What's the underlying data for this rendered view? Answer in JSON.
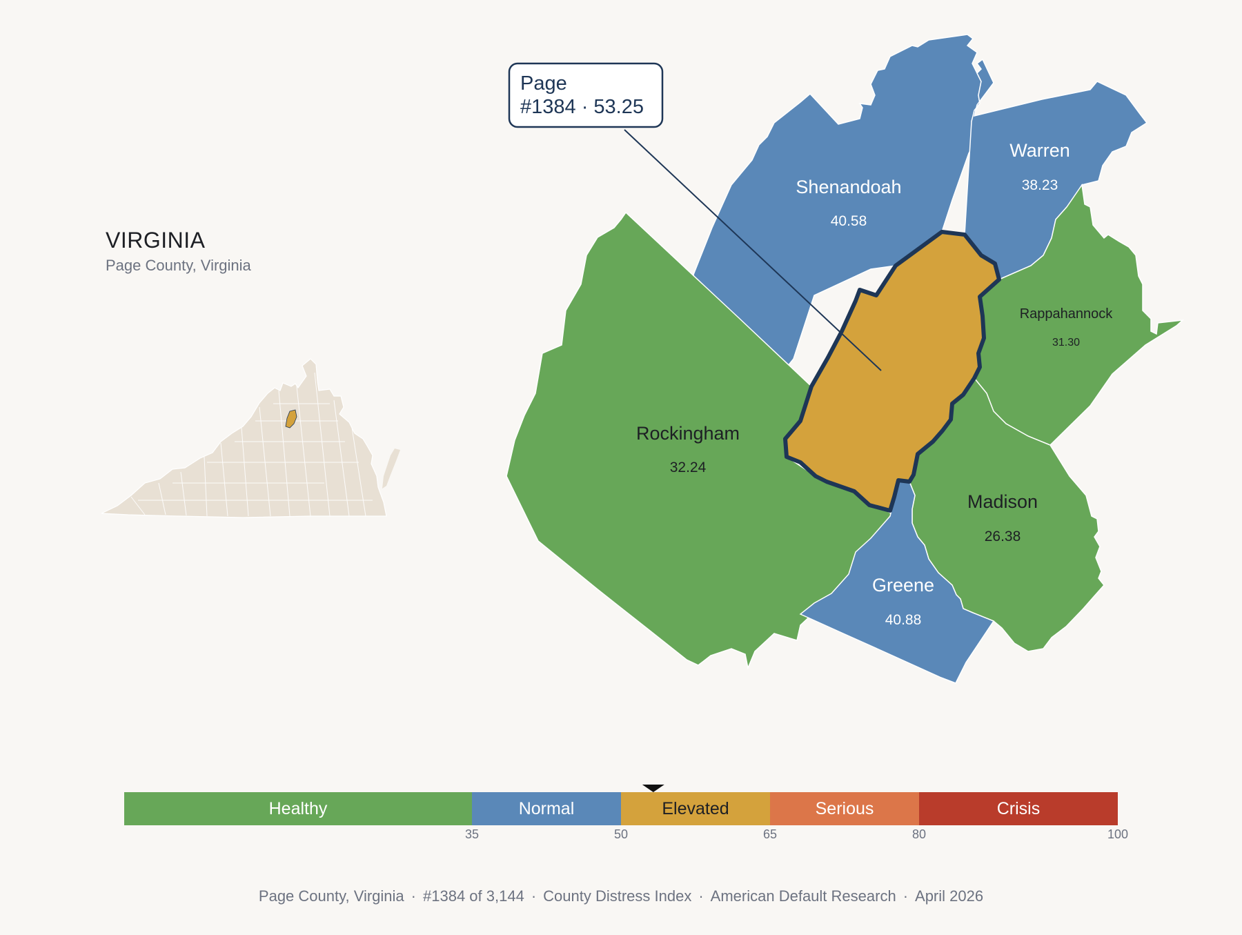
{
  "state": {
    "title": "VIRGINIA",
    "subtitle": "Page County, Virginia"
  },
  "colors": {
    "background": "#f9f7f4",
    "healthy": "#67a758",
    "normal": "#5a88b8",
    "elevated": "#d4a23c",
    "serious": "#dc7649",
    "crisis": "#b93c2b",
    "highlight_outline": "#1e3656",
    "inset_fill": "#e8e0d4"
  },
  "callout": {
    "name": "Page",
    "detail": "#1384 · 53.25"
  },
  "counties": [
    {
      "id": "shenandoah",
      "name": "Shenandoah",
      "value": "40.58",
      "category": "normal"
    },
    {
      "id": "warren",
      "name": "Warren",
      "value": "38.23",
      "category": "normal"
    },
    {
      "id": "rappahannock",
      "name": "Rappahannock",
      "value": "31.30",
      "category": "healthy"
    },
    {
      "id": "rockingham",
      "name": "Rockingham",
      "value": "32.24",
      "category": "healthy"
    },
    {
      "id": "madison",
      "name": "Madison",
      "value": "26.38",
      "category": "healthy"
    },
    {
      "id": "greene",
      "name": "Greene",
      "value": "40.88",
      "category": "normal"
    },
    {
      "id": "page",
      "name": "Page",
      "value": "53.25",
      "category": "elevated",
      "highlighted": true
    }
  ],
  "legend": {
    "segments": [
      {
        "label": "Healthy",
        "from": 0,
        "to": 35,
        "color": "#67a758"
      },
      {
        "label": "Normal",
        "from": 35,
        "to": 50,
        "color": "#5a88b8"
      },
      {
        "label": "Elevated",
        "from": 50,
        "to": 65,
        "color": "#d4a23c"
      },
      {
        "label": "Serious",
        "from": 65,
        "to": 80,
        "color": "#dc7649"
      },
      {
        "label": "Crisis",
        "from": 80,
        "to": 100,
        "color": "#b93c2b"
      }
    ],
    "ticks": [
      "35",
      "50",
      "65",
      "80",
      "100"
    ],
    "marker_value": 53.25
  },
  "footer": {
    "county": "Page County, Virginia",
    "rank": "#1384 of 3,144",
    "index": "County Distress Index",
    "source": "American Default Research",
    "date": "April 2026"
  }
}
